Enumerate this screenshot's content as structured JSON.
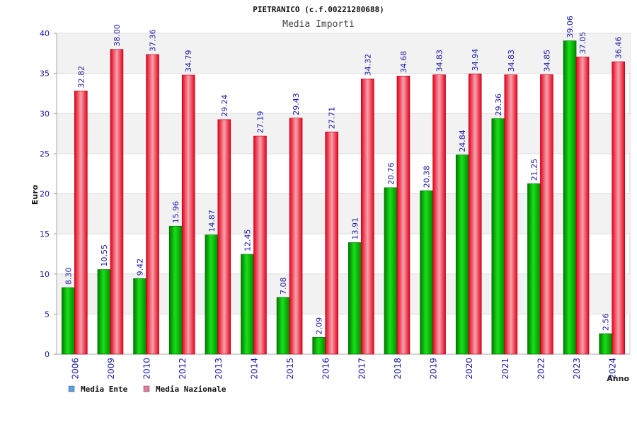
{
  "chart_data": {
    "type": "bar",
    "title": "PIETRANICO (c.f.00221280688)",
    "subtitle": "Media Importi",
    "xlabel": "Anno",
    "ylabel": "Euro",
    "ylim": [
      0,
      40
    ],
    "yticks": [
      "0",
      "5",
      "10",
      "15",
      "20",
      "25",
      "30",
      "35",
      "40"
    ],
    "grid": true,
    "legend_position": "bottom-left",
    "categories": [
      "2006",
      "2009",
      "2010",
      "2012",
      "2013",
      "2014",
      "2015",
      "2016",
      "2017",
      "2018",
      "2019",
      "2020",
      "2021",
      "2022",
      "2023",
      "2024"
    ],
    "series": [
      {
        "name": "Media Ente",
        "color": "#00b000",
        "legend_color": "#5aa0e6",
        "values": [
          8.3,
          10.55,
          9.42,
          15.96,
          14.87,
          12.45,
          7.08,
          2.09,
          13.91,
          20.76,
          20.38,
          24.84,
          29.36,
          21.25,
          39.06,
          2.56
        ],
        "labels": [
          "8.30",
          "10.55",
          "9.42",
          "15.96",
          "14.87",
          "12.45",
          "7.08",
          "2.09",
          "13.91",
          "20.76",
          "20.38",
          "24.84",
          "29.36",
          "21.25",
          "39.06",
          "2.56"
        ]
      },
      {
        "name": "Media Nazionale",
        "color": "#e8101e",
        "legend_color": "#e07aa0",
        "values": [
          32.82,
          38.0,
          37.36,
          34.79,
          29.24,
          27.19,
          29.43,
          27.71,
          34.32,
          34.68,
          34.83,
          34.94,
          34.83,
          34.85,
          37.05,
          36.46
        ],
        "labels": [
          "32.82",
          "38.00",
          "37.36",
          "34.79",
          "29.24",
          "27.19",
          "29.43",
          "27.71",
          "34.32",
          "34.68",
          "34.83",
          "34.94",
          "34.83",
          "34.85",
          "37.05",
          "36.46"
        ]
      }
    ]
  }
}
